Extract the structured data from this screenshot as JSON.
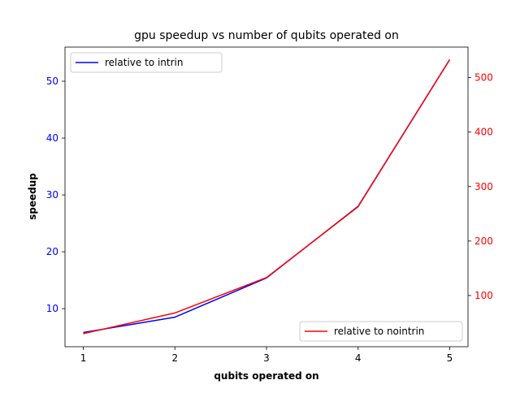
{
  "chart_data": {
    "type": "line",
    "title": "gpu speedup vs number of qubits operated on",
    "xlabel": "qubits operated on",
    "ylabel": "speedup",
    "y2label": "",
    "x": [
      1,
      2,
      3,
      4,
      5
    ],
    "xlim": [
      0.8,
      5.2
    ],
    "ylim": [
      3.3,
      56.0
    ],
    "y2lim": [
      6.0,
      556.0
    ],
    "xticks": [
      1,
      2,
      3,
      4,
      5
    ],
    "yticks": [
      10,
      20,
      30,
      40,
      50
    ],
    "y2ticks": [
      100,
      200,
      300,
      400,
      500
    ],
    "grid": false,
    "series": [
      {
        "name": "relative to intrin",
        "axis": "left",
        "color": "#0000ff",
        "values": [
          5.8,
          8.5,
          15.4,
          28.0,
          53.8
        ]
      },
      {
        "name": "relative to nointrin",
        "axis": "right",
        "color": "#ff0000",
        "values": [
          30,
          68,
          133,
          263,
          533
        ]
      }
    ],
    "legends": [
      {
        "placement": "upper-left",
        "series": [
          "relative to intrin"
        ]
      },
      {
        "placement": "lower-right",
        "series": [
          "relative to nointrin"
        ]
      }
    ],
    "left_tick_color": "#0000ff",
    "right_tick_color": "#ff0000"
  }
}
